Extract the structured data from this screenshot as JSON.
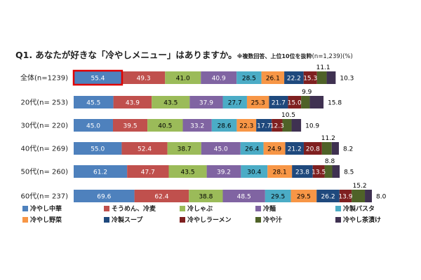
{
  "title": {
    "main": "Q1. あなたが好きな「冷やしメニュー」はありますか。",
    "note": "※複数回答、上位10位を抜粋",
    "note_tail": "(n=1,239)(%)"
  },
  "colors": {
    "series": [
      "#4e81bd",
      "#c0504d",
      "#9bbb59",
      "#8064a2",
      "#4bacc6",
      "#f79646",
      "#1f497d",
      "#7f2020",
      "#4f6228",
      "#3f3151"
    ],
    "highlight": "#e00000",
    "value_text_dark": "#000000",
    "value_text_light": "#ffffff"
  },
  "chart_data": {
    "type": "bar",
    "orientation": "horizontal",
    "stacked": true,
    "categories": [
      "全体(n=1239)",
      "20代(n= 253)",
      "30代(n= 220)",
      "40代(n= 269)",
      "50代(n= 260)",
      "60代(n= 237)"
    ],
    "series": [
      {
        "name": "冷やし中華",
        "values": [
          55.4,
          45.5,
          45.0,
          55.0,
          61.2,
          69.6
        ]
      },
      {
        "name": "そうめん、冷麦",
        "values": [
          49.3,
          43.9,
          39.5,
          52.4,
          47.7,
          62.4
        ]
      },
      {
        "name": "冷しゃぶ",
        "values": [
          41.0,
          43.5,
          40.5,
          38.7,
          43.5,
          38.8
        ]
      },
      {
        "name": "冷麺",
        "values": [
          40.9,
          37.9,
          33.2,
          45.0,
          39.2,
          48.5
        ]
      },
      {
        "name": "冷製パスタ",
        "values": [
          28.5,
          27.7,
          28.6,
          26.4,
          30.4,
          29.5
        ]
      },
      {
        "name": "冷やし野菜",
        "values": [
          26.1,
          25.3,
          22.3,
          24.9,
          28.1,
          29.5
        ]
      },
      {
        "name": "冷製スープ",
        "values": [
          22.2,
          21.7,
          17.7,
          21.2,
          23.8,
          26.2
        ]
      },
      {
        "name": "冷やしラーメン",
        "values": [
          15.3,
          15.0,
          12.3,
          20.8,
          13.5,
          13.9
        ]
      },
      {
        "name": "冷や汁",
        "values": [
          11.1,
          9.9,
          10.5,
          11.2,
          8.8,
          15.2
        ]
      },
      {
        "name": "冷やし茶漬け",
        "values": [
          10.3,
          15.8,
          10.9,
          8.2,
          8.5,
          8.0
        ]
      }
    ],
    "highlight": {
      "category_index": 0,
      "series_index": 0
    },
    "grid": false,
    "legend_position": "bottom"
  }
}
